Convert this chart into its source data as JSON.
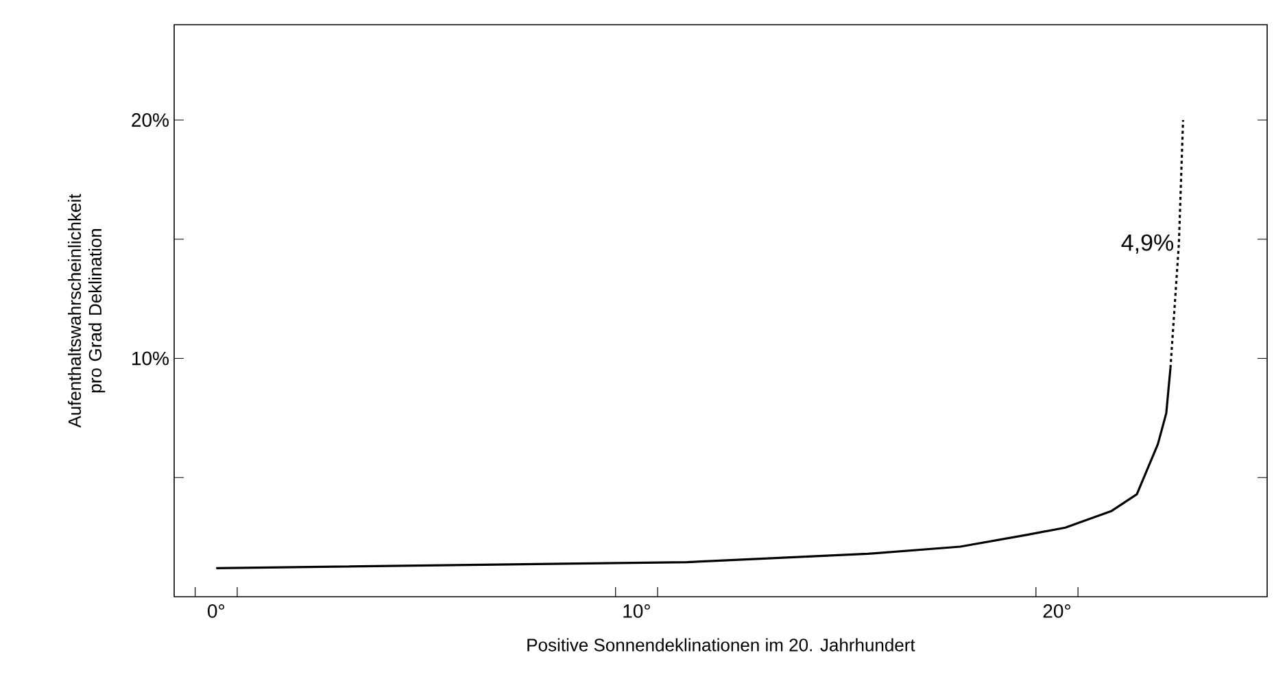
{
  "chart_data": {
    "type": "line",
    "xlabel": "Positive Sonnendeklinationen im 20. Jahrhundert",
    "ylabel": "Aufenthaltswahrscheinlichkeit pro Grad Deklination",
    "xlim": [
      -1,
      25
    ],
    "ylim": [
      0,
      24
    ],
    "xticks": [
      {
        "value": -0.5,
        "label": null
      },
      {
        "value": 0,
        "label": "0°"
      },
      {
        "value": 0.5,
        "label": null
      },
      {
        "value": 9.5,
        "label": null
      },
      {
        "value": 10,
        "label": "10°"
      },
      {
        "value": 10.5,
        "label": null
      },
      {
        "value": 19.5,
        "label": null
      },
      {
        "value": 20,
        "label": "20°"
      },
      {
        "value": 20.5,
        "label": null
      }
    ],
    "yticks": [
      {
        "value": 5,
        "label": null
      },
      {
        "value": 10,
        "label": "10%"
      },
      {
        "value": 15,
        "label": null
      },
      {
        "value": 20,
        "label": "20%"
      }
    ],
    "marker": "none",
    "series": [
      {
        "color": "#000000",
        "line_style": "solid",
        "x": [
          0,
          11.2,
          11.8,
          15.5,
          17.7,
          19.3,
          20.2,
          21.3,
          21.9,
          22.4,
          22.6,
          22.7
        ],
        "values": [
          1.2,
          1.45,
          1.5,
          1.8,
          2.1,
          2.6,
          2.9,
          3.6,
          4.3,
          6.4,
          7.7,
          9.6
        ]
      },
      {
        "color": "#000000",
        "line_style": "dotted",
        "x": [
          22.7,
          22.9,
          23.0
        ],
        "values": [
          9.6,
          14.8,
          20
        ]
      }
    ],
    "annotations": [
      {
        "text": "4,9%",
        "x": 22.9,
        "y": 14.8
      }
    ]
  }
}
